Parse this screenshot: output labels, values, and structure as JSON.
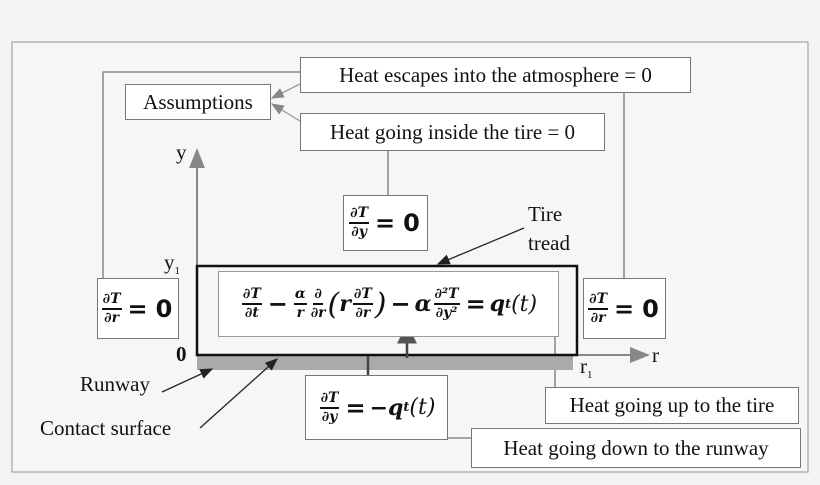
{
  "assumptions": "Assumptions",
  "heat_escapes": "Heat escapes into the atmosphere = 0",
  "heat_inside": "Heat going inside the tire = 0",
  "heat_up": "Heat going up to the tire",
  "heat_down": "Heat going down to the runway",
  "tire_tread_1": "Tire",
  "tire_tread_2": "tread",
  "runway": "Runway",
  "contact_surface": "Contact surface",
  "axis": {
    "y": "y",
    "y1": "y",
    "y1_sub": "1",
    "zero": "0",
    "r": "r",
    "r1": "r",
    "r1_sub": "1"
  },
  "bc_top": {
    "num": "∂T",
    "den": "∂y",
    "eq": "=",
    "rhs": "0"
  },
  "bc_left": {
    "num": "∂T",
    "den": "∂r",
    "eq": "=",
    "rhs": "0"
  },
  "bc_right": {
    "num": "∂T",
    "den": "∂r",
    "eq": "=",
    "rhs": "0"
  },
  "bc_bottom": {
    "num": "∂T",
    "den": "∂y",
    "eq": "=",
    "rhs": "−q",
    "sub": "t",
    "arg": "(t)"
  },
  "pde": {
    "f1n": "∂T",
    "f1d": "∂t",
    "minus1": "−",
    "f2n": "α",
    "f2d": "r",
    "f3n": "∂",
    "f3d": "∂r",
    "lp": "(",
    "r": "r",
    "f4n": "∂T",
    "f4d": "∂r",
    "rp": ")",
    "minus2": "−",
    "alpha": "α",
    "f5n": "∂²T",
    "f5d": "∂y²",
    "eq": "=",
    "q": "q",
    "sub": "t",
    "arg": "(t)"
  }
}
